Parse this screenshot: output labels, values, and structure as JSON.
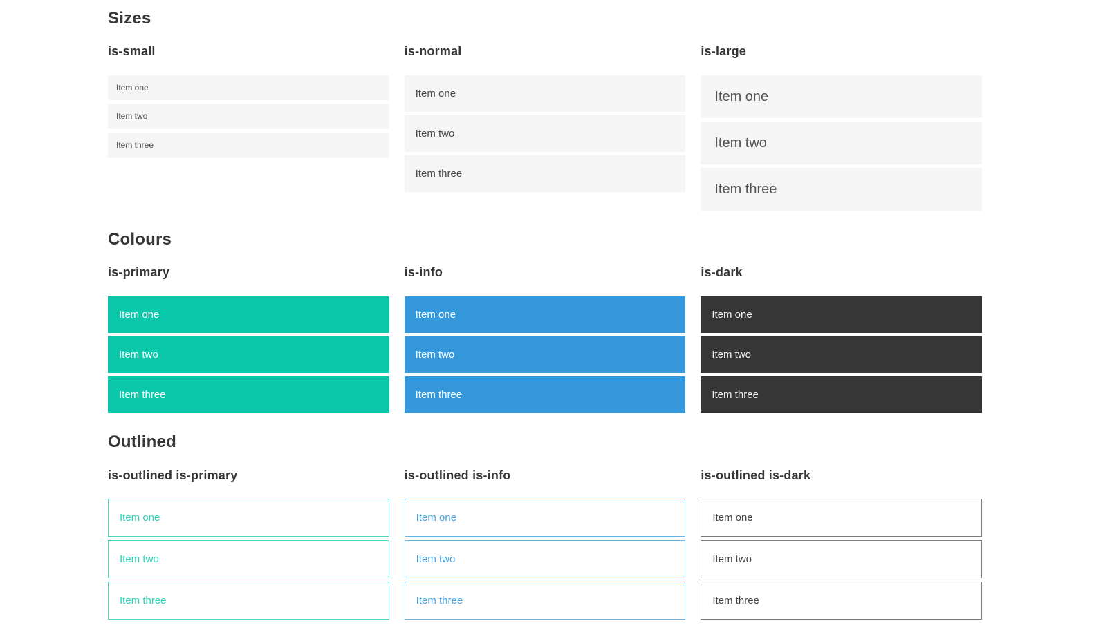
{
  "colors": {
    "primary": "#0cc8ab",
    "info": "#3498db",
    "dark": "#363636",
    "light": "#f5f5f5",
    "text": "#4a4a4a",
    "heading": "#363636",
    "white": "#ffffff"
  },
  "sections": [
    {
      "title": "Sizes",
      "groups": [
        {
          "label": "is-small",
          "items": [
            "Item one",
            "Item two",
            "Item three"
          ]
        },
        {
          "label": "is-normal",
          "items": [
            "Item one",
            "Item two",
            "Item three"
          ]
        },
        {
          "label": "is-large",
          "items": [
            "Item one",
            "Item two",
            "Item three"
          ]
        }
      ]
    },
    {
      "title": "Colours",
      "groups": [
        {
          "label": "is-primary",
          "items": [
            "Item one",
            "Item two",
            "Item three"
          ]
        },
        {
          "label": "is-info",
          "items": [
            "Item one",
            "Item two",
            "Item three"
          ]
        },
        {
          "label": "is-dark",
          "items": [
            "Item one",
            "Item two",
            "Item three"
          ]
        }
      ]
    },
    {
      "title": "Outlined",
      "groups": [
        {
          "label": "is-outlined is-primary",
          "items": [
            "Item one",
            "Item two",
            "Item three"
          ]
        },
        {
          "label": "is-outlined is-info",
          "items": [
            "Item one",
            "Item two",
            "Item three"
          ]
        },
        {
          "label": "is-outlined is-dark",
          "items": [
            "Item one",
            "Item two",
            "Item three"
          ]
        }
      ]
    }
  ]
}
